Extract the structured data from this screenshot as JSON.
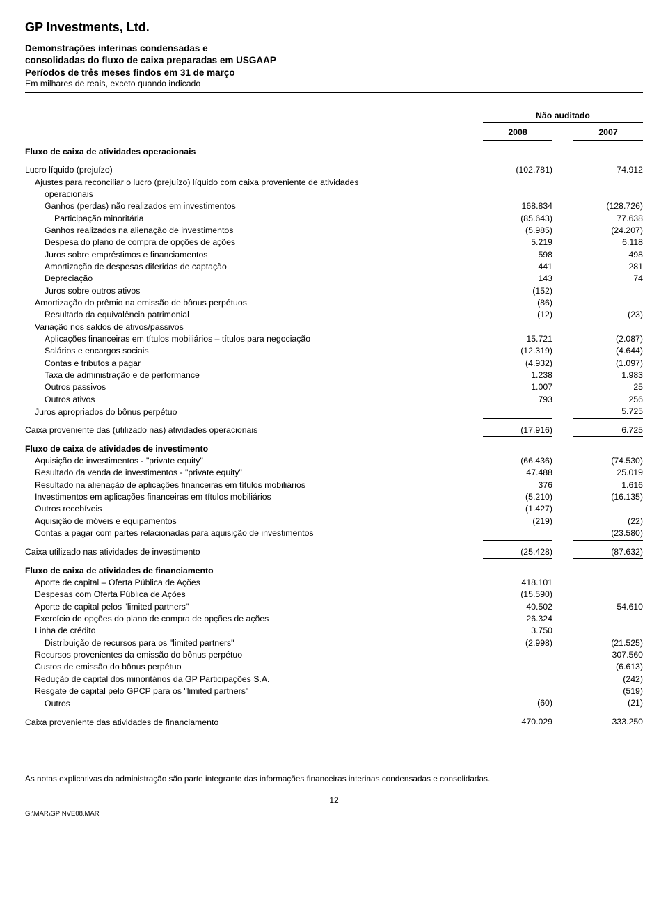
{
  "company": "GP Investments, Ltd.",
  "title1": "Demonstrações interinas condensadas e",
  "title2": "consolidadas do fluxo de caixa preparadas em USGAAP",
  "title3": "Períodos de três meses findos em 31 de março",
  "subtitle": "Em milhares de reais, exceto quando indicado",
  "not_audited": "Não auditado",
  "year1": "2008",
  "year2": "2007",
  "sections": {
    "op_heading": "Fluxo de caixa de atividades operacionais",
    "inv_heading": "Fluxo de caixa de atividades de investimento",
    "fin_heading": "Fluxo de caixa de atividades de financiamento"
  },
  "rows_op": [
    {
      "l": "Lucro líquido (prejuízo)",
      "v1": "(102.781)",
      "v2": "74.912",
      "ind": 0
    },
    {
      "l": "Ajustes para reconciliar o lucro (prejuízo) líquido com caixa proveniente de atividades",
      "v1": "",
      "v2": "",
      "ind": 1
    },
    {
      "l": "operacionais",
      "v1": "",
      "v2": "",
      "ind": 2,
      "cont": true
    },
    {
      "l": "Ganhos (perdas) não realizados em investimentos",
      "v1": "168.834",
      "v2": "(128.726)",
      "ind": 2
    },
    {
      "l": "Participação minoritária",
      "v1": "(85.643)",
      "v2": "77.638",
      "ind": 3
    },
    {
      "l": "Ganhos realizados na alienação de investimentos",
      "v1": "(5.985)",
      "v2": "(24.207)",
      "ind": 2
    },
    {
      "l": "Despesa do plano de compra de opções de ações",
      "v1": "5.219",
      "v2": "6.118",
      "ind": 2
    },
    {
      "l": "Juros sobre empréstimos e financiamentos",
      "v1": "598",
      "v2": "498",
      "ind": 2
    },
    {
      "l": "Amortização de despesas diferidas de captação",
      "v1": "441",
      "v2": "281",
      "ind": 2
    },
    {
      "l": "Depreciação",
      "v1": "143",
      "v2": "74",
      "ind": 2
    },
    {
      "l": "Juros sobre outros ativos",
      "v1": "(152)",
      "v2": "",
      "ind": 2
    },
    {
      "l": "Amortização do prêmio na emissão de bônus perpétuos",
      "v1": "(86)",
      "v2": "",
      "ind": 1
    },
    {
      "l": "Resultado da equivalência patrimonial",
      "v1": "(12)",
      "v2": "(23)",
      "ind": 2
    },
    {
      "l": "Variação nos saldos de ativos/passivos",
      "v1": "",
      "v2": "",
      "ind": 1
    },
    {
      "l": "Aplicações financeiras em títulos mobiliários – títulos para negociação",
      "v1": "15.721",
      "v2": "(2.087)",
      "ind": 2
    },
    {
      "l": "Salários e encargos sociais",
      "v1": "(12.319)",
      "v2": "(4.644)",
      "ind": 2
    },
    {
      "l": "Contas e tributos a pagar",
      "v1": "(4.932)",
      "v2": "(1.097)",
      "ind": 2
    },
    {
      "l": "Taxa de administração e de performance",
      "v1": "1.238",
      "v2": "1.983",
      "ind": 2
    },
    {
      "l": "Outros passivos",
      "v1": "1.007",
      "v2": "25",
      "ind": 2
    },
    {
      "l": "Outros ativos",
      "v1": "793",
      "v2": "256",
      "ind": 2
    },
    {
      "l": "Juros apropriados do bônus perpétuo",
      "v1": "",
      "v2": "5.725",
      "ind": 1,
      "sum": true
    }
  ],
  "op_total": {
    "l": "Caixa proveniente das (utilizado nas) atividades operacionais",
    "v1": "(17.916)",
    "v2": "6.725"
  },
  "rows_inv": [
    {
      "l": "Aquisição de investimentos - \"private equity\"",
      "v1": "(66.436)",
      "v2": "(74.530)",
      "ind": 1
    },
    {
      "l": "Resultado da venda de investimentos - \"private equity\"",
      "v1": "47.488",
      "v2": "25.019",
      "ind": 1
    },
    {
      "l": "Resultado na alienação de aplicações financeiras em títulos mobiliários",
      "v1": "376",
      "v2": "1.616",
      "ind": 1
    },
    {
      "l": "Investimentos em aplicações financeiras em títulos mobiliários",
      "v1": "(5.210)",
      "v2": "(16.135)",
      "ind": 1
    },
    {
      "l": "Outros recebíveis",
      "v1": "(1.427)",
      "v2": "",
      "ind": 1
    },
    {
      "l": "Aquisição de móveis e equipamentos",
      "v1": "(219)",
      "v2": "(22)",
      "ind": 1
    },
    {
      "l": "Contas a pagar com partes relacionadas para aquisição de investimentos",
      "v1": "",
      "v2": "(23.580)",
      "ind": 1,
      "sum": true
    }
  ],
  "inv_total": {
    "l": "Caixa utilizado nas atividades de investimento",
    "v1": "(25.428)",
    "v2": "(87.632)"
  },
  "rows_fin": [
    {
      "l": "Aporte de capital – Oferta Pública de Ações",
      "v1": "418.101",
      "v2": "",
      "ind": 1
    },
    {
      "l": "Despesas com Oferta Pública de Ações",
      "v1": "(15.590)",
      "v2": "",
      "ind": 1
    },
    {
      "l": "Aporte de capital pelos \"limited partners\"",
      "v1": "40.502",
      "v2": "54.610",
      "ind": 1
    },
    {
      "l": "Exercício de opções do plano de compra de opções de ações",
      "v1": "26.324",
      "v2": "",
      "ind": 1
    },
    {
      "l": "Linha de crédito",
      "v1": "3.750",
      "v2": "",
      "ind": 1
    },
    {
      "l": "Distribuição de recursos para os \"limited partners\"",
      "v1": "(2.998)",
      "v2": "(21.525)",
      "ind": 2
    },
    {
      "l": "Recursos provenientes da emissão do bônus perpétuo",
      "v1": "",
      "v2": "307.560",
      "ind": 1
    },
    {
      "l": "Custos de emissão do bônus perpétuo",
      "v1": "",
      "v2": "(6.613)",
      "ind": 1
    },
    {
      "l": "Redução de capital dos minoritários da GP Participações S.A.",
      "v1": "",
      "v2": "(242)",
      "ind": 1
    },
    {
      "l": "Resgate de capital pelo GPCP para os \"limited partners\"",
      "v1": "",
      "v2": "(519)",
      "ind": 1
    },
    {
      "l": "Outros",
      "v1": "(60)",
      "v2": "(21)",
      "ind": 2,
      "sum": true
    }
  ],
  "fin_total": {
    "l": "Caixa proveniente das atividades de financiamento",
    "v1": "470.029",
    "v2": "333.250"
  },
  "footnote": "As notas explicativas da administração são parte integrante das informações financeiras interinas condensadas e consolidadas.",
  "pagenum": "12",
  "filepath": "G:\\MAR\\GPINVE08.MAR"
}
